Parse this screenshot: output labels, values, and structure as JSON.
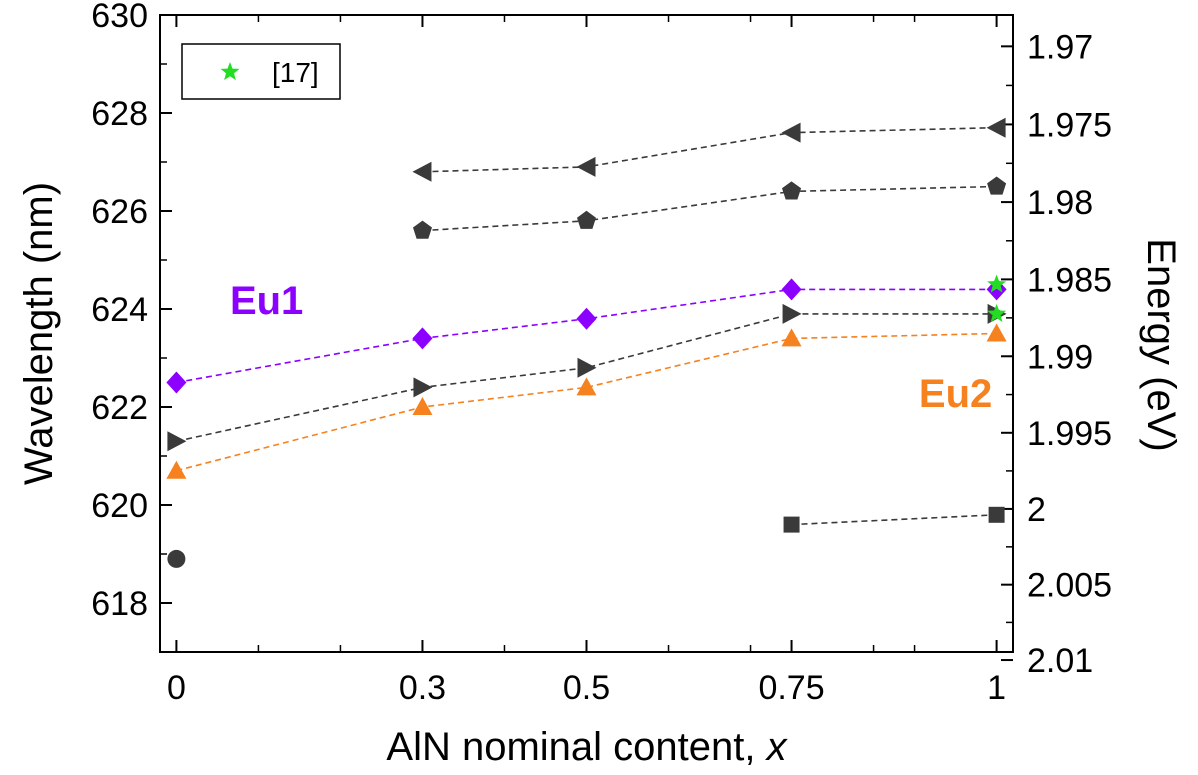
{
  "chart_data": {
    "type": "scatter",
    "xlabel": "AlN nominal content, ",
    "xlabel_italic": "x",
    "ylabel": "Wavelength (nm)",
    "y2label": "Energy (eV)",
    "xlim": [
      -0.02,
      1.02
    ],
    "ylim": [
      617,
      630
    ],
    "x_ticks": [
      0,
      0.3,
      0.5,
      0.75,
      1
    ],
    "x_tick_labels": [
      "0",
      "0.3",
      "0.5",
      "0.75",
      "1"
    ],
    "x_minor_ticks": [
      0.1,
      0.2,
      0.4,
      0.6,
      0.7,
      0.85,
      0.9
    ],
    "y_ticks": [
      618,
      620,
      622,
      624,
      626,
      628,
      630
    ],
    "y_tick_labels": [
      "618",
      "620",
      "622",
      "624",
      "626",
      "628",
      "630"
    ],
    "y2_ticks": [
      1.97,
      1.975,
      1.98,
      1.985,
      1.99,
      1.995,
      2.0,
      2.005,
      2.01
    ],
    "y2_tick_labels": [
      "1.97",
      "1.975",
      "1.98",
      "1.985",
      "1.99",
      "1.995",
      "2",
      "2.005",
      "2.01"
    ],
    "grid": false,
    "legend_position": "top-left",
    "legend": [
      {
        "label": "[17]",
        "marker": "star",
        "color": "#22dd22"
      }
    ],
    "annotations": [
      {
        "text": "Eu1",
        "color": "#8b00ff",
        "x": 0.11,
        "y": 623.9
      },
      {
        "text": "Eu2",
        "color": "#f5821f",
        "x": 0.95,
        "y": 622.0
      }
    ],
    "series": [
      {
        "marker": "triangle-left",
        "color": "#3a3a3a",
        "line": true,
        "x": [
          0.3,
          0.5,
          0.75,
          1
        ],
        "y": [
          626.8,
          626.9,
          627.6,
          627.7
        ]
      },
      {
        "marker": "pentagon",
        "color": "#3a3a3a",
        "line": true,
        "x": [
          0.3,
          0.5,
          0.75,
          1
        ],
        "y": [
          625.6,
          625.8,
          626.4,
          626.5
        ]
      },
      {
        "marker": "diamond",
        "color": "#8b00ff",
        "line": true,
        "x": [
          0,
          0.3,
          0.5,
          0.75,
          1
        ],
        "y": [
          622.5,
          623.4,
          623.8,
          624.4,
          624.4
        ]
      },
      {
        "marker": "triangle-right",
        "color": "#3a3a3a",
        "line": true,
        "x": [
          0,
          0.3,
          0.5,
          0.75,
          1
        ],
        "y": [
          621.3,
          622.4,
          622.8,
          623.9,
          623.9
        ]
      },
      {
        "marker": "triangle-up",
        "color": "#f5821f",
        "line": true,
        "x": [
          0,
          0.3,
          0.5,
          0.75,
          1
        ],
        "y": [
          620.7,
          622.0,
          622.4,
          623.4,
          623.5
        ]
      },
      {
        "marker": "square",
        "color": "#3a3a3a",
        "line": true,
        "x": [
          0.75,
          1
        ],
        "y": [
          619.6,
          619.8
        ]
      },
      {
        "marker": "circle",
        "color": "#3a3a3a",
        "line": false,
        "x": [
          0
        ],
        "y": [
          618.9
        ]
      },
      {
        "marker": "star",
        "color": "#22dd22",
        "line": false,
        "x": [
          1,
          1
        ],
        "y": [
          624.5,
          623.9
        ]
      }
    ]
  }
}
